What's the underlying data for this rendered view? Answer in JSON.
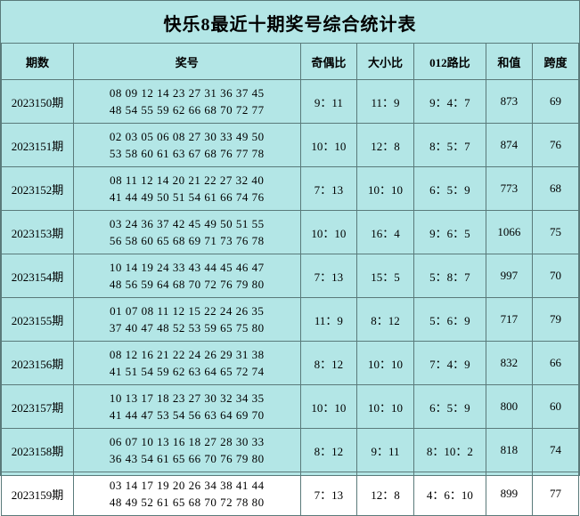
{
  "title": "快乐8最近十期奖号综合统计表",
  "headers": {
    "period": "期数",
    "numbers": "奖号",
    "odd_even": "奇偶比",
    "big_small": "大小比",
    "route": "012路比",
    "sum": "和值",
    "span": "跨度"
  },
  "rows": [
    {
      "period": "2023150期",
      "line1": "08 09 12 14 23 27 31 36 37 45",
      "line2": "48 54 55 59 62 66 68 70 72 77",
      "odd_even": "9：11",
      "big_small": "11：9",
      "route": "9：4：7",
      "sum": "873",
      "span": "69"
    },
    {
      "period": "2023151期",
      "line1": "02 03 05 06 08 27 30 33 49 50",
      "line2": "53 58 60 61 63 67 68 76 77 78",
      "odd_even": "10：10",
      "big_small": "12：8",
      "route": "8：5：7",
      "sum": "874",
      "span": "76"
    },
    {
      "period": "2023152期",
      "line1": "08 11 12 14 20 21 22 27 32 40",
      "line2": "41 44 49 50 51 54 61 66 74 76",
      "odd_even": "7：13",
      "big_small": "10：10",
      "route": "6：5：9",
      "sum": "773",
      "span": "68"
    },
    {
      "period": "2023153期",
      "line1": "03 24 36 37 42 45 49 50 51 55",
      "line2": "56 58 60 65 68 69 71 73 76 78",
      "odd_even": "10：10",
      "big_small": "16：4",
      "route": "9：6：5",
      "sum": "1066",
      "span": "75"
    },
    {
      "period": "2023154期",
      "line1": "10 14 19 24 33 43 44 45 46 47",
      "line2": "48 56 59 64 68 70 72 76 79 80",
      "odd_even": "7：13",
      "big_small": "15：5",
      "route": "5：8：7",
      "sum": "997",
      "span": "70"
    },
    {
      "period": "2023155期",
      "line1": "01 07 08 11 12 15 22 24 26 35",
      "line2": "37 40 47 48 52 53 59 65 75 80",
      "odd_even": "11：9",
      "big_small": "8：12",
      "route": "5：6：9",
      "sum": "717",
      "span": "79"
    },
    {
      "period": "2023156期",
      "line1": "08 12 16 21 22 24 26 29 31 38",
      "line2": "41 51 54 59 62 63 64 65 72 74",
      "odd_even": "8：12",
      "big_small": "10：10",
      "route": "7：4：9",
      "sum": "832",
      "span": "66"
    },
    {
      "period": "2023157期",
      "line1": "10 13 17 18 23 27 30 32 34 35",
      "line2": "41 44 47 53 54 56 63 64 69 70",
      "odd_even": "10：10",
      "big_small": "10：10",
      "route": "6：5：9",
      "sum": "800",
      "span": "60"
    },
    {
      "period": "2023158期",
      "line1": "06 07 10 13 16 18 27 28 30 33",
      "line2": "36 43 54 61 65 66 70 76 79 80",
      "odd_even": "8：12",
      "big_small": "9：11",
      "route": "8：10：2",
      "sum": "818",
      "span": "74"
    },
    {
      "period": "2023159期",
      "line1": "03 14 17 19 20 26 34 38 41 44",
      "line2": "48 49 52 61 65 68 70 72 78 80",
      "odd_even": "7：13",
      "big_small": "12：8",
      "route": "4：6：10",
      "sum": "899",
      "span": "77"
    }
  ],
  "colors": {
    "background": "#b3e6e6",
    "border": "#5a7a7a",
    "text": "#000000"
  }
}
